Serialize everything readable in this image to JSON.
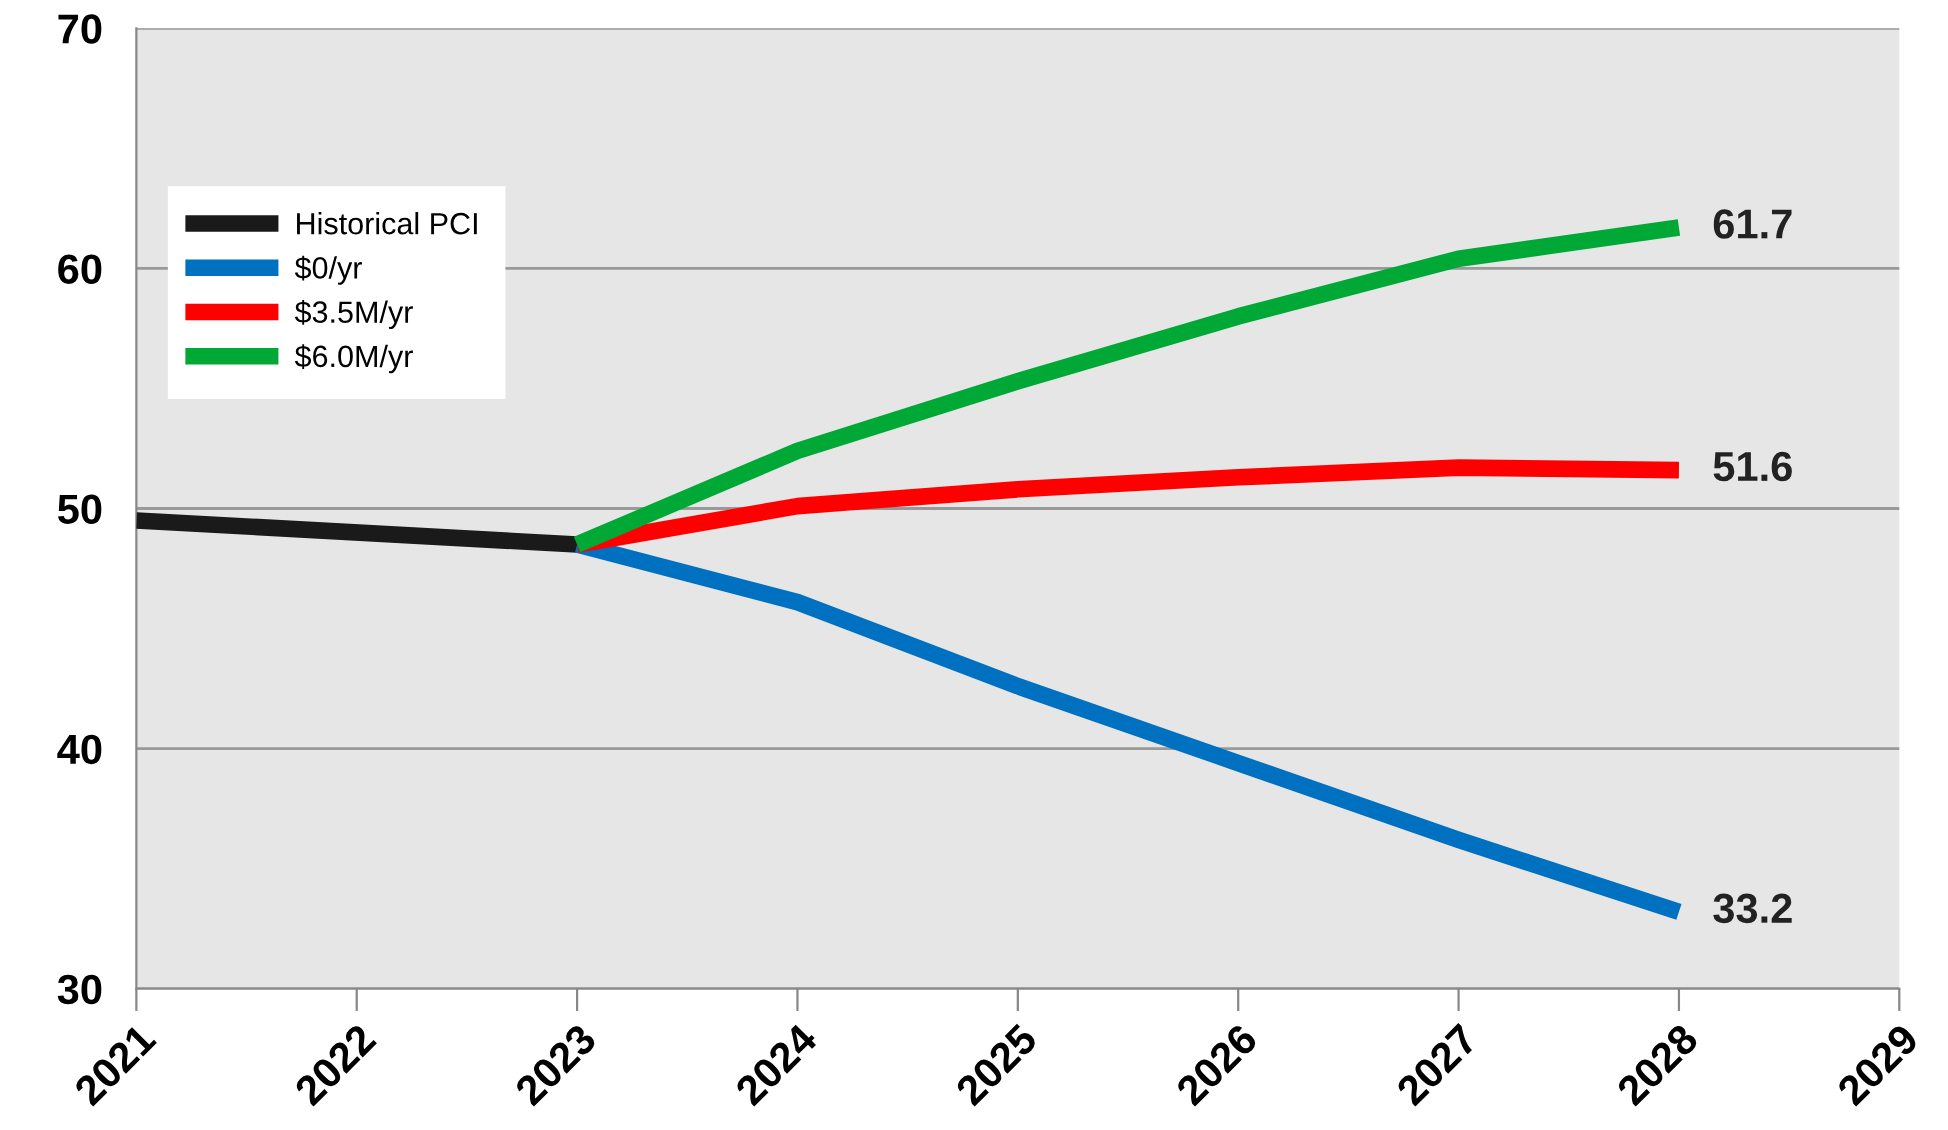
{
  "chart_data": {
    "type": "line",
    "series": [
      {
        "name": "Historical PCI",
        "color": "#1a1a1a",
        "x": [
          2021,
          2023
        ],
        "values": [
          49.5,
          48.5
        ]
      },
      {
        "name": "$0/yr",
        "color": "#0070c0",
        "x": [
          2023,
          2024,
          2025,
          2026,
          2027,
          2028
        ],
        "values": [
          48.5,
          46.1,
          42.6,
          39.4,
          36.2,
          33.2
        ],
        "value_labels": [
          null,
          null,
          null,
          null,
          null,
          "33.2"
        ]
      },
      {
        "name": "$3.5M/yr",
        "color": "#ff0000",
        "x": [
          2023,
          2024,
          2025,
          2026,
          2027,
          2028
        ],
        "values": [
          48.5,
          50.1,
          50.8,
          51.3,
          51.7,
          51.6
        ],
        "value_labels": [
          null,
          null,
          null,
          null,
          null,
          "51.6"
        ]
      },
      {
        "name": "$6.0M/yr",
        "color": "#00a936",
        "x": [
          2023,
          2024,
          2025,
          2026,
          2027,
          2028
        ],
        "values": [
          48.5,
          52.4,
          55.3,
          58.0,
          60.4,
          61.7
        ],
        "value_labels": [
          null,
          null,
          null,
          null,
          null,
          "61.7"
        ]
      }
    ],
    "xlim": [
      2021,
      2029
    ],
    "xticks": [
      2021,
      2022,
      2023,
      2024,
      2025,
      2026,
      2027,
      2028,
      2029
    ],
    "ylim": [
      30,
      70
    ],
    "yticks": [
      30,
      40,
      50,
      60,
      70
    ],
    "grid": "y",
    "legend": "top left",
    "marker": "none",
    "line_style": "solid"
  }
}
